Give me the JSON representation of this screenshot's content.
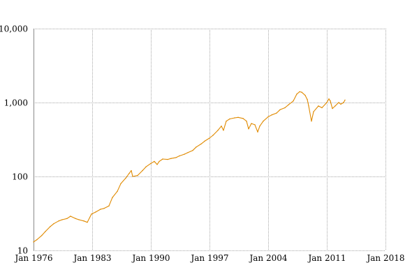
{
  "chart_data": {
    "type": "line",
    "title": "",
    "xlabel": "",
    "ylabel": "",
    "y_scale": "log",
    "grid": true,
    "xlim": [
      "1976-01",
      "2018-01"
    ],
    "ylim": [
      10,
      10000
    ],
    "x_ticks": [
      "Jan 1976",
      "Jan 1983",
      "Jan 1990",
      "Jan 1997",
      "Jan 2004",
      "Jan 2011",
      "Jan 2018"
    ],
    "y_ticks": [
      "10",
      "100",
      "1,000",
      "10,000"
    ],
    "colors": {
      "series": "#e08a00",
      "grid": "#a8a8a8"
    },
    "series": [
      {
        "x": [
          "1976-01",
          "1976-06",
          "1977-01",
          "1977-06",
          "1978-01",
          "1978-06",
          "1979-01",
          "1979-06",
          "1980-01",
          "1980-06",
          "1981-01",
          "1981-06",
          "1982-01",
          "1982-06",
          "1982-12",
          "1983-06",
          "1984-01",
          "1984-06",
          "1985-01",
          "1985-06",
          "1986-01",
          "1986-06",
          "1987-01",
          "1987-06",
          "1987-09",
          "1987-11",
          "1988-06",
          "1989-01",
          "1989-06",
          "1990-01",
          "1990-06",
          "1990-10",
          "1991-01",
          "1991-06",
          "1992-01",
          "1992-06",
          "1993-01",
          "1993-06",
          "1994-01",
          "1994-06",
          "1995-01",
          "1995-06",
          "1996-01",
          "1996-06",
          "1997-01",
          "1997-06",
          "1998-01",
          "1998-06",
          "1998-09",
          "1999-01",
          "1999-06",
          "2000-01",
          "2000-06",
          "2001-01",
          "2001-06",
          "2001-09",
          "2002-01",
          "2002-06",
          "2002-10",
          "2003-01",
          "2003-06",
          "2004-01",
          "2004-06",
          "2005-01",
          "2005-06",
          "2006-01",
          "2006-06",
          "2007-01",
          "2007-06",
          "2007-10",
          "2008-01",
          "2008-06",
          "2008-09",
          "2008-11",
          "2009-03",
          "2009-06",
          "2010-01",
          "2010-06",
          "2011-01",
          "2011-04",
          "2011-06",
          "2011-09",
          "2012-01",
          "2012-06",
          "2012-09",
          "2013-01",
          "2013-03"
        ],
        "values": [
          13,
          14,
          16,
          18,
          21,
          23,
          25,
          26,
          27,
          29,
          27,
          26,
          25,
          24,
          31,
          33,
          36,
          37,
          40,
          52,
          63,
          80,
          95,
          110,
          120,
          100,
          103,
          120,
          135,
          150,
          160,
          145,
          160,
          172,
          170,
          175,
          180,
          190,
          200,
          210,
          225,
          250,
          275,
          300,
          330,
          360,
          420,
          480,
          420,
          560,
          600,
          620,
          630,
          610,
          560,
          440,
          520,
          500,
          400,
          480,
          560,
          640,
          680,
          720,
          800,
          850,
          930,
          1050,
          1300,
          1400,
          1380,
          1250,
          1100,
          900,
          560,
          750,
          900,
          850,
          1000,
          1120,
          1050,
          830,
          900,
          1000,
          950,
          1000,
          1080
        ]
      }
    ]
  }
}
